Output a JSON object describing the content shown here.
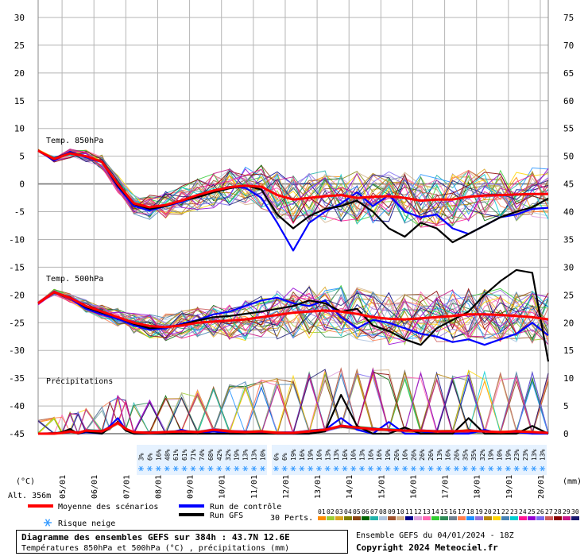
{
  "chart_data": {
    "type": "line",
    "title": "Diagramme des ensembles GEFS sur 384h : 43.7N 12.6E",
    "subtitle": "Températures 850hPa et 500hPa (°C) , précipitations (mm)",
    "run_label": "Ensemble GEFS du 04/01/2024 - 18Z",
    "copyright": "Copyright 2024 Meteociel.fr",
    "altitude_label": "Alt. 356m",
    "left_unit": "(°C)",
    "right_unit": "(mm)",
    "panel_labels": {
      "t850": "Temp. 850hPa",
      "t500": "Temp. 500hPa",
      "precip": "Précipitations"
    },
    "left_axis": {
      "min": -45,
      "max": 30,
      "step": 5,
      "ticks": [
        "30",
        "25",
        "20",
        "15",
        "10",
        "5",
        "0",
        "-5",
        "-10",
        "-15",
        "-20",
        "-25",
        "-30",
        "-35",
        "-40",
        "-45"
      ]
    },
    "right_axis_ticks": {
      "temperature_scale": [
        "75",
        "70",
        "65",
        "60",
        "55",
        "50",
        "45",
        "40",
        "35",
        "30",
        "25",
        "20",
        "15",
        "10",
        "5",
        "0"
      ]
    },
    "x_dates": [
      "05/01",
      "06/01",
      "07/01",
      "08/01",
      "09/01",
      "10/01",
      "11/01",
      "12/01",
      "13/01",
      "14/01",
      "15/01",
      "16/01",
      "17/01",
      "18/01",
      "19/01",
      "20/01"
    ],
    "x_range_hours": [
      0,
      384
    ],
    "legend": {
      "mean": "Moyenne des scénarios",
      "control": "Run de contrôle",
      "gfs": "Run GFS",
      "snow": "Risque neige",
      "perts_label": "30 Perts.",
      "pert_numbers": [
        "01",
        "02",
        "03",
        "04",
        "05",
        "06",
        "07",
        "08",
        "09",
        "10",
        "11",
        "12",
        "13",
        "14",
        "15",
        "16",
        "17",
        "18",
        "19",
        "20",
        "21",
        "22",
        "23",
        "24",
        "25",
        "26",
        "27",
        "28",
        "29",
        "30"
      ]
    },
    "snow_risk": {
      "block1": [
        "3%",
        "6%",
        "16%",
        "48%",
        "61%",
        "61%",
        "71%",
        "74%",
        "68%",
        "42%",
        "32%",
        "19%",
        "13%",
        "13%",
        "10%"
      ],
      "block2": [
        "6%",
        "6%",
        "19%",
        "16%",
        "19%",
        "16%",
        "13%",
        "13%",
        "16%",
        "16%",
        "13%",
        "16%",
        "16%",
        "19%",
        "26%",
        "16%",
        "26%",
        "26%",
        "26%",
        "13%",
        "16%",
        "26%",
        "35%",
        "35%",
        "32%",
        "19%",
        "10%",
        "19%",
        "23%",
        "23%",
        "13%",
        "13%"
      ]
    },
    "series_colors": {
      "mean": "#ff0000",
      "control": "#0000ff",
      "gfs": "#000000",
      "perts": [
        "#ff8c00",
        "#9acd32",
        "#daa520",
        "#808000",
        "#8b4513",
        "#006400",
        "#20b2aa",
        "#b0c4de",
        "#a0522d",
        "#d2b48c",
        "#00008b",
        "#dda0dd",
        "#ff69b4",
        "#32cd32",
        "#2e8b57",
        "#708090",
        "#ff7f50",
        "#1e90ff",
        "#9370db",
        "#b8860b",
        "#ffd700",
        "#4682b4",
        "#00ced1",
        "#ff1493",
        "#9400d3",
        "#7b68ee",
        "#cd5c5c",
        "#8b0000",
        "#c71585",
        "#191970"
      ]
    },
    "series": [
      {
        "name": "Moyenne des scénarios",
        "panel": "t850",
        "x": [
          0,
          12,
          24,
          36,
          48,
          60,
          72,
          84,
          96,
          108,
          120,
          132,
          144,
          156,
          168,
          180,
          192,
          204,
          216,
          228,
          240,
          252,
          264,
          276,
          288,
          300,
          312,
          324,
          336,
          348,
          360,
          372,
          384
        ],
        "y": [
          6,
          4.5,
          5.5,
          5,
          4,
          0,
          -3.5,
          -4.2,
          -3.8,
          -3,
          -2,
          -1.2,
          -0.6,
          -0.3,
          -0.5,
          -2,
          -2.8,
          -2.5,
          -2.2,
          -2,
          -2.5,
          -2.3,
          -2.2,
          -2.5,
          -3,
          -2.8,
          -2.8,
          -2.3,
          -2.1,
          -2,
          -1.9,
          -1.8,
          -1.8
        ]
      },
      {
        "name": "Run de contrôle",
        "panel": "t850",
        "x": [
          0,
          12,
          24,
          36,
          48,
          60,
          72,
          84,
          96,
          108,
          120,
          132,
          144,
          156,
          168,
          180,
          192,
          204,
          216,
          228,
          240,
          252,
          264,
          276,
          288,
          300,
          312,
          324,
          336,
          348,
          360,
          372,
          384
        ],
        "y": [
          6,
          4.2,
          5.8,
          4.8,
          4,
          -0.5,
          -4,
          -4.8,
          -4,
          -3.2,
          -2.1,
          -1.2,
          -0.5,
          -0.7,
          -2.5,
          -7,
          -12,
          -7,
          -5,
          -3.5,
          -1.5,
          -4,
          -2,
          -5,
          -6,
          -5.5,
          -8,
          -9,
          -7.5,
          -6,
          -5.5,
          -4.5,
          -4.3
        ]
      },
      {
        "name": "Run GFS",
        "panel": "t850",
        "x": [
          0,
          12,
          24,
          36,
          48,
          60,
          72,
          84,
          96,
          108,
          120,
          132,
          144,
          156,
          168,
          180,
          192,
          204,
          216,
          228,
          240,
          252,
          264,
          276,
          288,
          300,
          312,
          324,
          336,
          348,
          360,
          372,
          384
        ],
        "y": [
          6,
          4.4,
          5.6,
          5,
          4,
          -0.3,
          -3.6,
          -4.5,
          -4,
          -3,
          -2.4,
          -1.5,
          -0.8,
          -0.3,
          -1,
          -5.5,
          -8,
          -5.8,
          -4.5,
          -4,
          -3,
          -5,
          -8,
          -9.5,
          -7,
          -8,
          -10.5,
          -9,
          -7.5,
          -6,
          -5,
          -4.2,
          -2.6
        ]
      },
      {
        "name": "Moyenne des scénarios",
        "panel": "t500",
        "x": [
          0,
          12,
          24,
          36,
          48,
          60,
          72,
          84,
          96,
          108,
          120,
          132,
          144,
          156,
          168,
          180,
          192,
          204,
          216,
          228,
          240,
          252,
          264,
          276,
          288,
          300,
          312,
          324,
          336,
          348,
          360,
          372,
          384
        ],
        "y": [
          -21.5,
          -19.5,
          -20.5,
          -22,
          -23,
          -24,
          -25,
          -25.6,
          -25.8,
          -25.5,
          -25,
          -24.8,
          -24.6,
          -24.4,
          -24,
          -23.6,
          -23.2,
          -23,
          -22.8,
          -23,
          -23.4,
          -24,
          -24.3,
          -24.4,
          -24.2,
          -24,
          -23.8,
          -23.5,
          -23.5,
          -23.6,
          -23.8,
          -24,
          -24.4
        ]
      },
      {
        "name": "Run de contrôle",
        "panel": "t500",
        "x": [
          0,
          12,
          24,
          36,
          48,
          60,
          72,
          84,
          96,
          108,
          120,
          132,
          144,
          156,
          168,
          180,
          192,
          204,
          216,
          228,
          240,
          252,
          264,
          276,
          288,
          300,
          312,
          324,
          336,
          348,
          360,
          372,
          384
        ],
        "y": [
          -21.5,
          -19.4,
          -20.6,
          -22.5,
          -23.5,
          -24.3,
          -25.5,
          -26.3,
          -26,
          -25.2,
          -24.5,
          -23.5,
          -23,
          -22,
          -21,
          -20.5,
          -21.5,
          -22,
          -21,
          -24,
          -26,
          -24.5,
          -25,
          -26,
          -27,
          -27.5,
          -28.5,
          -28,
          -29,
          -28,
          -27,
          -25,
          -27.3
        ]
      },
      {
        "name": "Run GFS",
        "panel": "t500",
        "x": [
          0,
          12,
          24,
          36,
          48,
          60,
          72,
          84,
          96,
          108,
          120,
          132,
          144,
          156,
          168,
          180,
          192,
          204,
          216,
          228,
          240,
          252,
          264,
          276,
          288,
          300,
          312,
          324,
          336,
          348,
          360,
          372,
          384
        ],
        "y": [
          -21.5,
          -19.6,
          -20.4,
          -22.2,
          -23.2,
          -24,
          -25.2,
          -26,
          -25.8,
          -25.4,
          -24.6,
          -24,
          -23.8,
          -23.4,
          -23,
          -22.5,
          -22,
          -21,
          -21.5,
          -23,
          -22.5,
          -25.5,
          -26.5,
          -28,
          -29,
          -26,
          -24.5,
          -23,
          -20,
          -17.5,
          -15.5,
          -16,
          -32
        ]
      },
      {
        "name": "Moyenne des scénarios",
        "panel": "precip",
        "x": [
          0,
          12,
          18,
          24,
          30,
          36,
          48,
          54,
          60,
          66,
          72,
          84,
          96,
          108,
          120,
          132,
          144,
          156,
          168,
          180,
          192,
          204,
          216,
          228,
          240,
          252,
          264,
          276,
          288,
          300,
          312,
          324,
          336,
          348,
          360,
          372,
          384
        ],
        "y": [
          0,
          0,
          0.1,
          0.3,
          0.1,
          0.4,
          0.3,
          0.8,
          1.4,
          0.6,
          0.2,
          0.1,
          0.2,
          0.3,
          0.2,
          0.5,
          0.3,
          0.2,
          0.3,
          0.1,
          0.1,
          0.3,
          0.5,
          1.0,
          0.8,
          0.6,
          0.5,
          0.4,
          0.4,
          0.3,
          0.3,
          0.4,
          0.3,
          0.2,
          0.3,
          0.2,
          0.1
        ]
      },
      {
        "name": "Run de contrôle",
        "panel": "precip",
        "x": [
          0,
          12,
          18,
          24,
          30,
          36,
          48,
          54,
          60,
          66,
          72,
          84,
          96,
          108,
          120,
          132,
          144,
          156,
          168,
          180,
          192,
          204,
          216,
          228,
          240,
          252,
          264,
          276,
          288,
          300,
          312,
          324,
          336,
          348,
          360,
          372,
          384
        ],
        "y": [
          0,
          0,
          0.1,
          0.5,
          0,
          0.2,
          0,
          1.0,
          2.0,
          0.5,
          0,
          0,
          0,
          0.5,
          0,
          0.3,
          0,
          0,
          0.2,
          0,
          0,
          0,
          0.5,
          2.0,
          0.5,
          0,
          1.5,
          0,
          0,
          0.3,
          0,
          0,
          0.5,
          0,
          0.2,
          0,
          0
        ]
      },
      {
        "name": "Run GFS",
        "panel": "precip",
        "x": [
          0,
          12,
          18,
          24,
          30,
          36,
          48,
          54,
          60,
          66,
          72,
          84,
          96,
          108,
          120,
          132,
          144,
          156,
          168,
          180,
          192,
          204,
          216,
          228,
          240,
          252,
          264,
          276,
          288,
          300,
          312,
          324,
          336,
          348,
          360,
          372,
          384
        ],
        "y": [
          0,
          0,
          0.2,
          0.6,
          0,
          0.3,
          0,
          0.8,
          1.5,
          0.4,
          0,
          0,
          0,
          0,
          0,
          0,
          0,
          0,
          0,
          0,
          0,
          0,
          0.3,
          5.0,
          1.0,
          0,
          0,
          0.8,
          0,
          0,
          0,
          2.0,
          0,
          0,
          0,
          1.0,
          0
        ]
      }
    ]
  }
}
